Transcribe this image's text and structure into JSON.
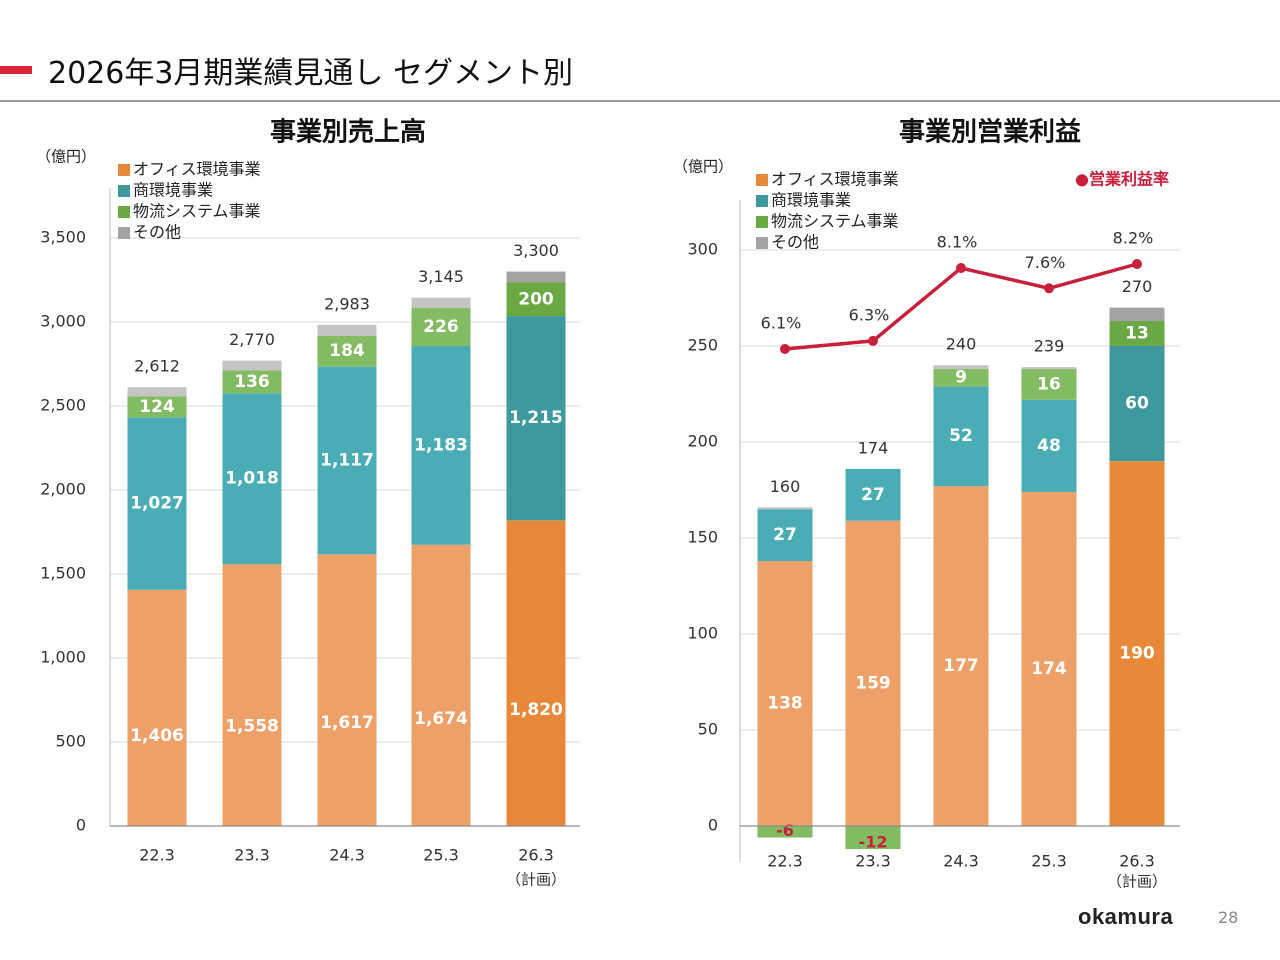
{
  "page": {
    "title": "2026年3月期業績見通し セグメント別",
    "brand": "okamura",
    "page_number": "28"
  },
  "chart_data": [
    {
      "type": "bar",
      "stacked": true,
      "title": "事業別売上高",
      "unit_label": "（億円）",
      "categories": [
        "22.3",
        "23.3",
        "24.3",
        "25.3",
        "26.3"
      ],
      "category_notes": [
        "",
        "",
        "",
        "",
        "（計画）"
      ],
      "series": [
        {
          "name": "オフィス環境事業",
          "values": [
            1406,
            1558,
            1617,
            1674,
            1820
          ],
          "labels": [
            "1,406",
            "1,558",
            "1,617",
            "1,674",
            "1,820"
          ],
          "color": "#eda168",
          "color_plan": "#e8893a"
        },
        {
          "name": "商環境事業",
          "values": [
            1027,
            1018,
            1117,
            1183,
            1215
          ],
          "labels": [
            "1,027",
            "1,018",
            "1,117",
            "1,183",
            "1,215"
          ],
          "color": "#4aadb5",
          "color_plan": "#3d999e"
        },
        {
          "name": "物流システム事業",
          "values": [
            124,
            136,
            184,
            226,
            200
          ],
          "labels": [
            "124",
            "136",
            "184",
            "226",
            "200"
          ],
          "color": "#83bb62",
          "color_plan": "#6aa843"
        },
        {
          "name": "その他",
          "values": [
            55,
            58,
            65,
            62,
            65
          ],
          "labels": [
            "",
            "",
            "",
            "",
            ""
          ],
          "color": "#c4c4c4",
          "color_plan": "#a3a3a3"
        }
      ],
      "totals": [
        2612,
        2770,
        2983,
        3145,
        3300
      ],
      "total_labels": [
        "2,612",
        "2,770",
        "2,983",
        "3,145",
        "3,300"
      ],
      "ylim": [
        0,
        3500
      ],
      "yticks": [
        0,
        500,
        1000,
        1500,
        2000,
        2500,
        3000,
        3500
      ],
      "ytick_labels": [
        "0",
        "500",
        "1,000",
        "1,500",
        "2,000",
        "2,500",
        "3,000",
        "3,500"
      ],
      "grid": true,
      "legend": "top-left"
    },
    {
      "type": "bar",
      "stacked": true,
      "title": "事業別営業利益",
      "unit_label": "（億円）",
      "categories": [
        "22.3",
        "23.3",
        "24.3",
        "25.3",
        "26.3"
      ],
      "category_notes": [
        "",
        "",
        "",
        "",
        "（計画）"
      ],
      "series": [
        {
          "name": "オフィス環境事業",
          "values": [
            138,
            159,
            177,
            174,
            190
          ],
          "labels": [
            "138",
            "159",
            "177",
            "174",
            "190"
          ],
          "color": "#eda168",
          "color_plan": "#e8893a"
        },
        {
          "name": "商環境事業",
          "values": [
            27,
            27,
            52,
            48,
            60
          ],
          "labels": [
            "27",
            "27",
            "52",
            "48",
            "60"
          ],
          "color": "#4aadb5",
          "color_plan": "#3d999e"
        },
        {
          "name": "物流システム事業",
          "values": [
            -6,
            -12,
            9,
            16,
            13
          ],
          "labels": [
            "-6",
            "-12",
            "9",
            "16",
            "13"
          ],
          "color": "#83bb62",
          "color_plan": "#6aa843"
        },
        {
          "name": "その他",
          "values": [
            1,
            0,
            2,
            1,
            7
          ],
          "labels": [
            "",
            "",
            "",
            "",
            ""
          ],
          "color": "#c4c4c4",
          "color_plan": "#a3a3a3"
        }
      ],
      "totals": [
        160,
        174,
        240,
        239,
        270
      ],
      "total_labels": [
        "160",
        "174",
        "240",
        "239",
        "270"
      ],
      "line_series": {
        "name": "●営業利益率",
        "values": [
          6.1,
          6.3,
          8.1,
          7.6,
          8.2
        ],
        "labels": [
          "6.1%",
          "6.3%",
          "8.1%",
          "7.6%",
          "8.2%"
        ],
        "color": "#c8203a",
        "axis": "secondary"
      },
      "ylim": [
        -12,
        300
      ],
      "yticks": [
        0,
        50,
        100,
        150,
        200,
        250,
        300
      ],
      "ytick_labels": [
        "0",
        "50",
        "100",
        "150",
        "200",
        "250",
        "300"
      ],
      "grid": true,
      "legend": "top-left"
    }
  ]
}
